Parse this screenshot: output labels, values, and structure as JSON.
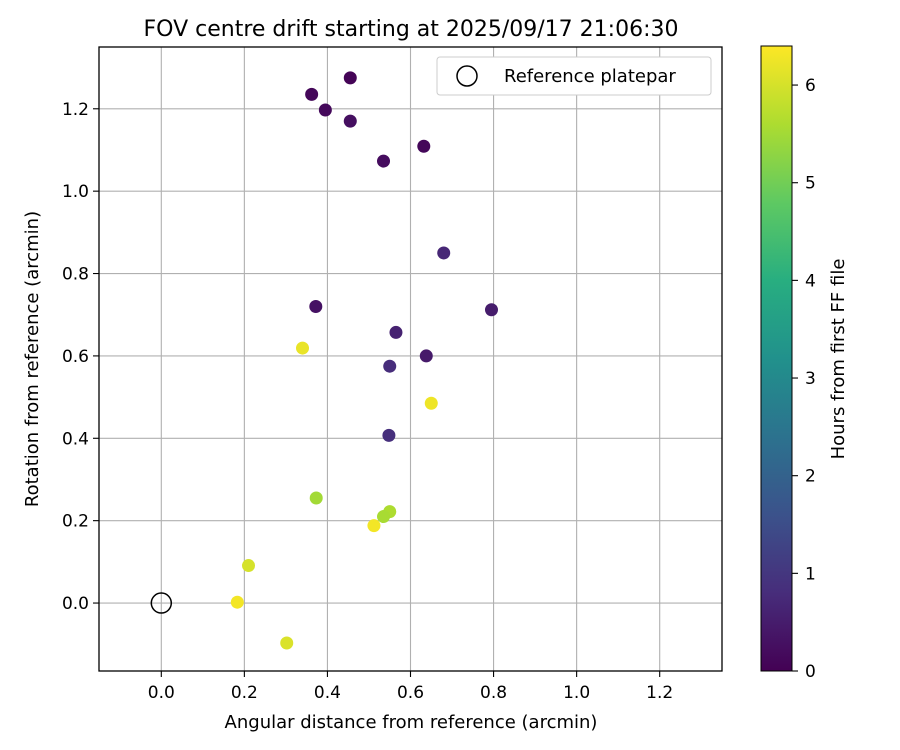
{
  "chart_data": {
    "type": "scatter",
    "title": "FOV centre drift starting at 2025/09/17 21:06:30",
    "xlabel": "Angular distance from reference (arcmin)",
    "ylabel": "Rotation from reference (arcmin)",
    "xlim": [
      -0.15,
      1.35
    ],
    "ylim": [
      -0.165,
      1.35
    ],
    "xticks": [
      0.0,
      0.2,
      0.4,
      0.6,
      0.8,
      1.0,
      1.2
    ],
    "yticks": [
      0.0,
      0.2,
      0.4,
      0.6,
      0.8,
      1.0,
      1.2
    ],
    "xtick_labels": [
      "0.0",
      "0.2",
      "0.4",
      "0.6",
      "0.8",
      "1.0",
      "1.2"
    ],
    "ytick_labels": [
      "0.0",
      "0.2",
      "0.4",
      "0.6",
      "0.8",
      "1.0",
      "1.2"
    ],
    "grid": true,
    "legend": {
      "position": "top-right",
      "label": "Reference platepar"
    },
    "reference_point": {
      "x": 0.0,
      "y": 0.0
    },
    "colorbar": {
      "label": "Hours from first FF file",
      "min": 0,
      "max": 6.4,
      "ticks": [
        0,
        1,
        2,
        3,
        4,
        5,
        6
      ],
      "tick_labels": [
        "0",
        "1",
        "2",
        "3",
        "4",
        "5",
        "6"
      ],
      "colormap": "viridis"
    },
    "points": [
      {
        "x": 0.455,
        "y": 1.275,
        "hours": 0.05
      },
      {
        "x": 0.362,
        "y": 1.235,
        "hours": 0.1
      },
      {
        "x": 0.395,
        "y": 1.197,
        "hours": 0.15
      },
      {
        "x": 0.455,
        "y": 1.17,
        "hours": 0.25
      },
      {
        "x": 0.632,
        "y": 1.109,
        "hours": 0.1
      },
      {
        "x": 0.535,
        "y": 1.073,
        "hours": 0.2
      },
      {
        "x": 0.68,
        "y": 0.85,
        "hours": 0.7
      },
      {
        "x": 0.372,
        "y": 0.72,
        "hours": 0.3
      },
      {
        "x": 0.795,
        "y": 0.712,
        "hours": 0.5
      },
      {
        "x": 0.565,
        "y": 0.657,
        "hours": 0.6
      },
      {
        "x": 0.638,
        "y": 0.6,
        "hours": 0.45
      },
      {
        "x": 0.55,
        "y": 0.575,
        "hours": 0.8
      },
      {
        "x": 0.548,
        "y": 0.407,
        "hours": 0.85
      },
      {
        "x": 0.34,
        "y": 0.619,
        "hours": 6.2
      },
      {
        "x": 0.65,
        "y": 0.485,
        "hours": 6.25
      },
      {
        "x": 0.373,
        "y": 0.255,
        "hours": 5.5
      },
      {
        "x": 0.55,
        "y": 0.222,
        "hours": 5.6
      },
      {
        "x": 0.535,
        "y": 0.21,
        "hours": 5.55
      },
      {
        "x": 0.512,
        "y": 0.188,
        "hours": 6.3
      },
      {
        "x": 0.21,
        "y": 0.091,
        "hours": 6.0
      },
      {
        "x": 0.183,
        "y": 0.002,
        "hours": 6.3
      },
      {
        "x": 0.302,
        "y": -0.097,
        "hours": 6.05
      }
    ]
  }
}
